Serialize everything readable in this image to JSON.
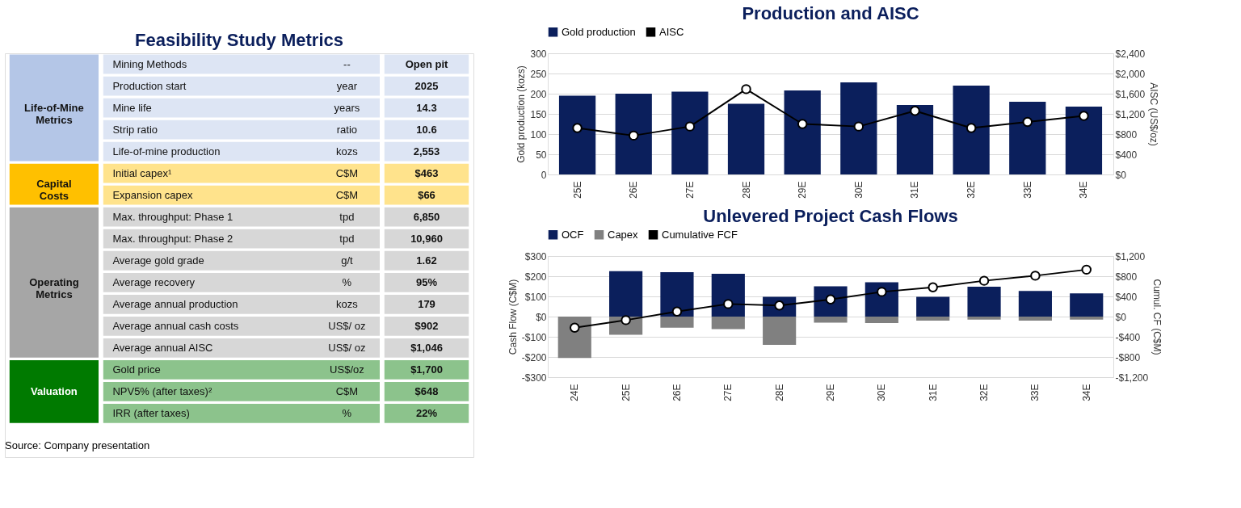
{
  "chart_data": [
    {
      "type": "other",
      "title": "Feasibility Study Metrics",
      "colors": [
        "#b4c6e7",
        "#ffc000",
        "#a6a6a6",
        "#007a00"
      ],
      "cell_labels": [
        [
          "Life-of-Mine Metrics",
          "Mining Methods",
          "--",
          "Open pit"
        ],
        [
          null,
          "Production start",
          "year",
          "2025"
        ],
        [
          null,
          "Mine life",
          "years",
          "14.3"
        ],
        [
          null,
          "Strip ratio",
          "ratio",
          "10.6"
        ],
        [
          null,
          "Life-of-mine production",
          "kozs",
          "2,553"
        ],
        [
          "Capital Costs",
          "Initial capex¹",
          "C$M",
          "$463"
        ],
        [
          null,
          "Expansion capex",
          "C$M",
          "$66"
        ],
        [
          "Operating Metrics",
          "Max. throughput: Phase 1",
          "tpd",
          "6,850"
        ],
        [
          null,
          "Max. throughput: Phase 2",
          "tpd",
          "10,960"
        ],
        [
          null,
          "Average gold grade",
          "g/t",
          "1.62"
        ],
        [
          null,
          "Average recovery",
          "%",
          "95%"
        ],
        [
          null,
          "Average annual production",
          "kozs",
          "179"
        ],
        [
          null,
          "Average annual cash costs",
          "US$/ oz",
          "$902"
        ],
        [
          null,
          "Average annual AISC",
          "US$/ oz",
          "$1,046"
        ],
        [
          "Valuation",
          "Gold price",
          "US$/oz",
          "$1,700"
        ],
        [
          null,
          "NPV5% (after taxes)²",
          "C$M",
          "$648"
        ],
        [
          null,
          "IRR (after taxes)",
          "%",
          "22%"
        ]
      ],
      "annotations": [
        "Source: Company presentation"
      ]
    },
    {
      "type": "bar",
      "title": "Production and AISC",
      "ylabel": "Gold production (kozs)",
      "y2label": "AISC (US$/oz)",
      "categories": [
        "25E",
        "26E",
        "27E",
        "28E",
        "29E",
        "30E",
        "31E",
        "32E",
        "33E",
        "34E"
      ],
      "series": [
        {
          "name": "Gold production",
          "color": "#0b1f5c",
          "values": [
            195,
            200,
            205,
            175,
            208,
            228,
            172,
            220,
            180,
            168
          ]
        },
        {
          "name": "AISC",
          "type": "line",
          "axis": "y2",
          "color": "#000000",
          "values": [
            920,
            770,
            950,
            1690,
            1000,
            950,
            1260,
            920,
            1040,
            1160
          ]
        }
      ],
      "ylim": [
        0,
        300
      ],
      "yticks": [
        0,
        50,
        100,
        150,
        200,
        250,
        300
      ],
      "y2lim": [
        0,
        2400
      ],
      "y2ticks": [
        {
          "value": 0,
          "label": "$0"
        },
        {
          "value": 400,
          "label": "$400"
        },
        {
          "value": 800,
          "label": "$800"
        },
        {
          "value": 1200,
          "label": "$1,200"
        },
        {
          "value": 1600,
          "label": "$1,600"
        },
        {
          "value": 2000,
          "label": "$2,000"
        },
        {
          "value": 2400,
          "label": "$2,400"
        }
      ],
      "grid": "y",
      "legend": "top",
      "marker": "circle"
    },
    {
      "type": "bar",
      "title": "Unlevered Project Cash Flows",
      "ylabel": "Cash Flow (C$M)",
      "y2label": "Cumul. CF (C$M)",
      "categories": [
        "24E",
        "25E",
        "26E",
        "27E",
        "28E",
        "29E",
        "30E",
        "31E",
        "32E",
        "33E",
        "34E"
      ],
      "series": [
        {
          "name": "OCF",
          "color": "#0b1f5c",
          "values": [
            null,
            225,
            220,
            212,
            98,
            150,
            170,
            98,
            148,
            127,
            115
          ]
        },
        {
          "name": "Capex",
          "color": "#808080",
          "values": [
            -205,
            -90,
            -55,
            -62,
            -140,
            -30,
            -32,
            -20,
            -15,
            -20,
            -15
          ]
        },
        {
          "name": "Cumulative FCF",
          "type": "line",
          "axis": "y2",
          "color": "#000000",
          "values": [
            -220,
            -70,
            100,
            250,
            220,
            340,
            490,
            580,
            710,
            810,
            930
          ]
        }
      ],
      "ylim": [
        -300,
        300
      ],
      "yticks": [
        {
          "value": -300,
          "label": "-$300"
        },
        {
          "value": -200,
          "label": "-$200"
        },
        {
          "value": -100,
          "label": "-$100"
        },
        {
          "value": 0,
          "label": "$0"
        },
        {
          "value": 100,
          "label": "$100"
        },
        {
          "value": 200,
          "label": "$200"
        },
        {
          "value": 300,
          "label": "$300"
        }
      ],
      "y2lim": [
        -1200,
        1200
      ],
      "y2ticks": [
        {
          "value": -1200,
          "label": "-$1,200"
        },
        {
          "value": -800,
          "label": "-$800"
        },
        {
          "value": -400,
          "label": "-$400"
        },
        {
          "value": 0,
          "label": "$0"
        },
        {
          "value": 400,
          "label": "$400"
        },
        {
          "value": 800,
          "label": "$800"
        },
        {
          "value": 1200,
          "label": "$1,200"
        }
      ],
      "grid": "y",
      "legend": "top",
      "marker": "circle",
      "stacked": true
    }
  ]
}
